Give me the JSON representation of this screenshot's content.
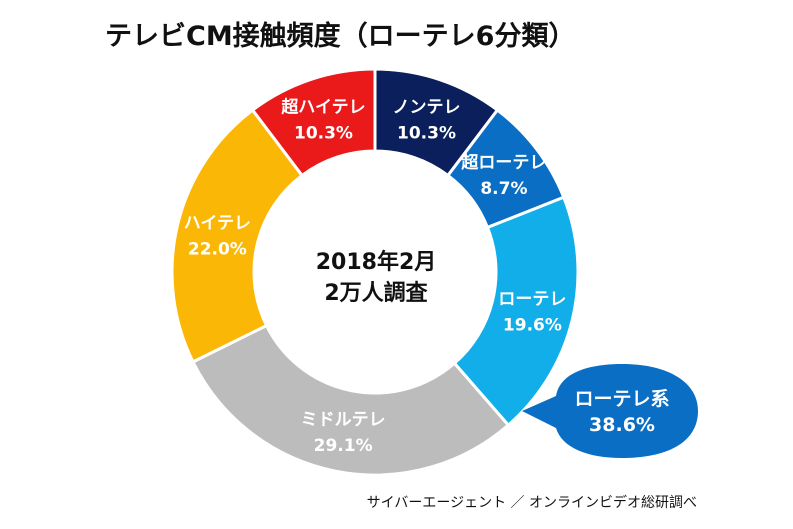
{
  "chart_data": {
    "type": "pie",
    "title": "テレビCM接触頻度（ローテレ6分類）",
    "center_label": [
      "2018年2月",
      "2万人調査"
    ],
    "categories": [
      "ノンテレ",
      "超ローテレ",
      "ローテレ",
      "ミドルテレ",
      "ハイテレ",
      "超ハイテレ"
    ],
    "values": [
      10.3,
      8.7,
      19.6,
      29.1,
      22.0,
      10.3
    ],
    "value_labels": [
      "10.3%",
      "8.7%",
      "19.6%",
      "29.1%",
      "22.0%",
      "10.3%"
    ],
    "colors": [
      "#0b1f5c",
      "#0a6ec4",
      "#12aee9",
      "#bcbcbc",
      "#fbb705",
      "#ea1a1a"
    ],
    "callout": {
      "label": "ローテレ系",
      "value": "38.6%",
      "color": "#0a6ec4"
    },
    "source": "サイバーエージェント ／ オンラインビデオ総研調べ"
  }
}
